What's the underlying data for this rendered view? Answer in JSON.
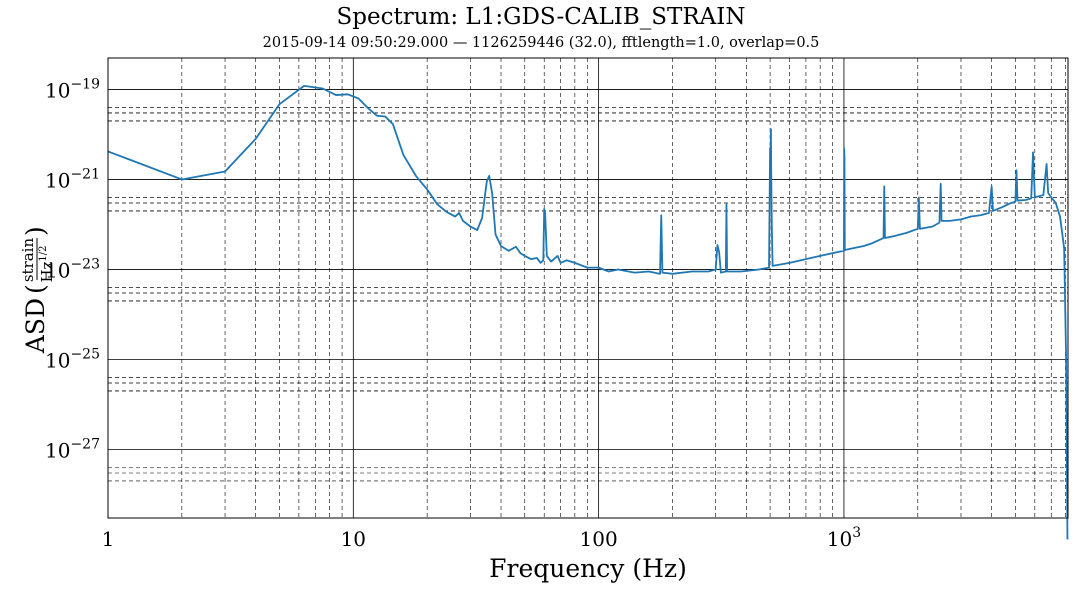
{
  "chart_data": {
    "type": "line",
    "title": "Spectrum: L1:GDS-CALIB_STRAIN",
    "subtitle": "2015-09-14 09:50:29.000 — 1126259446 (32.0), fftlength=1.0, overlap=0.5",
    "xlabel": "Frequency (Hz)",
    "ylabel": "ASD (strain / Hz^(1/2))",
    "ylabel_parts": {
      "prefix": "ASD",
      "num": "strain",
      "den": "Hz",
      "den_exp": "1/2"
    },
    "xscale": "log",
    "yscale": "log",
    "xlim": [
      1,
      8192
    ],
    "ylim": [
      3e-29,
      5e-19
    ],
    "grid": "major and minor",
    "x_ticks": [
      {
        "value": 1,
        "base": "1",
        "exp": ""
      },
      {
        "value": 10,
        "base": "10",
        "exp": ""
      },
      {
        "value": 100,
        "base": "100",
        "exp": ""
      },
      {
        "value": 1000,
        "base": "10",
        "exp": "3"
      }
    ],
    "y_ticks": [
      {
        "value": 1e-19,
        "base": "10",
        "exp": "−19"
      },
      {
        "value": 1e-21,
        "base": "10",
        "exp": "−21"
      },
      {
        "value": 1e-23,
        "base": "10",
        "exp": "−23"
      },
      {
        "value": 1e-25,
        "base": "10",
        "exp": "−25"
      },
      {
        "value": 1e-27,
        "base": "10",
        "exp": "−27"
      }
    ],
    "line_color": "#1f77b4",
    "series": [
      {
        "values": [
          [
            1,
            4.2e-21
          ],
          [
            2,
            1e-21
          ],
          [
            3,
            1.5e-21
          ],
          [
            4,
            8e-21
          ],
          [
            5,
            4.7e-20
          ],
          [
            6.3,
            1.2e-19
          ],
          [
            7.5,
            1.05e-19
          ],
          [
            8.5,
            7.5e-20
          ],
          [
            9.5,
            7.8e-20
          ],
          [
            10.5,
            6.3e-20
          ],
          [
            11.5,
            3.8e-20
          ],
          [
            12.5,
            2.6e-20
          ],
          [
            13.5,
            2.5e-20
          ],
          [
            14.5,
            1.7e-20
          ],
          [
            16,
            3.5e-21
          ],
          [
            18,
            1.2e-21
          ],
          [
            20,
            6e-22
          ],
          [
            22,
            2.8e-22
          ],
          [
            24,
            1.9e-22
          ],
          [
            26,
            1.5e-22
          ],
          [
            27,
            1.8e-22
          ],
          [
            28,
            1.2e-22
          ],
          [
            30,
            9e-23
          ],
          [
            32,
            7.5e-23
          ],
          [
            33.5,
            1.4e-22
          ],
          [
            35,
            9e-22
          ],
          [
            35.8,
            1.2e-21
          ],
          [
            36.8,
            5e-22
          ],
          [
            38,
            6e-23
          ],
          [
            40,
            3.3e-23
          ],
          [
            43,
            2.6e-23
          ],
          [
            46,
            3.2e-23
          ],
          [
            48,
            2.3e-23
          ],
          [
            50,
            2e-23
          ],
          [
            53,
            1.7e-23
          ],
          [
            56,
            1.8e-23
          ],
          [
            58,
            1.4e-23
          ],
          [
            59.5,
            1.6e-23
          ],
          [
            60,
            2.2e-22
          ],
          [
            60.5,
            1.8e-22
          ],
          [
            61.5,
            2e-23
          ],
          [
            64,
            1.5e-23
          ],
          [
            68,
            2e-23
          ],
          [
            70,
            1.4e-23
          ],
          [
            74,
            1.6e-23
          ],
          [
            80,
            1.4e-23
          ],
          [
            90,
            1.1e-23
          ],
          [
            100,
            1.1e-23
          ],
          [
            110,
            9e-24
          ],
          [
            120,
            1e-23
          ],
          [
            140,
            8.5e-24
          ],
          [
            160,
            9e-24
          ],
          [
            178,
            8e-24
          ],
          [
            180,
            1.6e-22
          ],
          [
            182,
            8.5e-24
          ],
          [
            200,
            8e-24
          ],
          [
            240,
            9e-24
          ],
          [
            280,
            9e-24
          ],
          [
            300,
            1e-23
          ],
          [
            305,
            3.5e-23
          ],
          [
            310,
            2.4e-23
          ],
          [
            315,
            8.5e-24
          ],
          [
            330,
            9e-24
          ],
          [
            332,
            2.8e-22
          ],
          [
            334,
            9e-24
          ],
          [
            380,
            9e-24
          ],
          [
            450,
            1e-23
          ],
          [
            495,
            1.1e-23
          ],
          [
            500,
            5e-21
          ],
          [
            502,
            2.5e-21
          ],
          [
            504,
            1.3e-20
          ],
          [
            505,
            2e-21
          ],
          [
            508,
            1e-22
          ],
          [
            512,
            1.2e-23
          ],
          [
            600,
            1.4e-23
          ],
          [
            700,
            1.7e-23
          ],
          [
            800,
            2e-23
          ],
          [
            900,
            2.3e-23
          ],
          [
            1000,
            2.6e-23
          ],
          [
            1002,
            5e-21
          ],
          [
            1005,
            3e-21
          ],
          [
            1008,
            2.7e-23
          ],
          [
            1100,
            3e-23
          ],
          [
            1200,
            3.3e-23
          ],
          [
            1300,
            3.8e-23
          ],
          [
            1450,
            5e-23
          ],
          [
            1460,
            7e-22
          ],
          [
            1470,
            5e-23
          ],
          [
            1600,
            5.5e-23
          ],
          [
            1800,
            6.5e-23
          ],
          [
            2000,
            8e-23
          ],
          [
            2020,
            4e-22
          ],
          [
            2040,
            8e-23
          ],
          [
            2300,
            9e-23
          ],
          [
            2450,
            1.1e-22
          ],
          [
            2480,
            8e-22
          ],
          [
            2500,
            1.2e-22
          ],
          [
            2700,
            1.2e-22
          ],
          [
            3000,
            1.3e-22
          ],
          [
            3300,
            1.5e-22
          ],
          [
            3600,
            1.6e-22
          ],
          [
            3900,
            1.8e-22
          ],
          [
            4000,
            7e-22
          ],
          [
            4050,
            2e-22
          ],
          [
            4400,
            2.4e-22
          ],
          [
            4800,
            3e-22
          ],
          [
            5000,
            3.2e-22
          ],
          [
            5050,
            1.6e-21
          ],
          [
            5100,
            3.4e-22
          ],
          [
            5500,
            3.5e-22
          ],
          [
            5800,
            3.8e-22
          ],
          [
            5900,
            4e-21
          ],
          [
            6000,
            4e-22
          ],
          [
            6200,
            4.2e-22
          ],
          [
            6500,
            4.5e-22
          ],
          [
            6700,
            2.2e-21
          ],
          [
            6800,
            5e-22
          ],
          [
            7000,
            4e-22
          ],
          [
            7300,
            3e-22
          ],
          [
            7600,
            1.5e-22
          ],
          [
            7900,
            3e-23
          ],
          [
            8050,
            1e-25
          ],
          [
            8150,
            1e-29
          ]
        ]
      }
    ]
  }
}
